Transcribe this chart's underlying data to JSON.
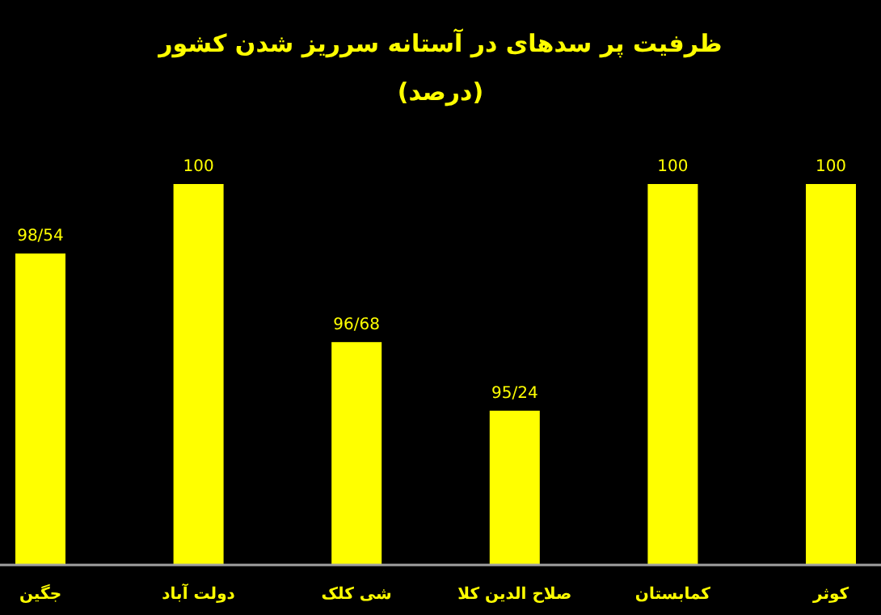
{
  "chart_data": {
    "type": "bar",
    "title": "ظرفیت پر سدهای در آستانه سرریز شدن کشور",
    "subtitle": "(درصد)",
    "categories": [
      "جگین",
      "دولت آباد",
      "شی کلک",
      "صلاح الدین کلا",
      "کمابستان",
      "کوثر"
    ],
    "values": [
      98.54,
      100,
      96.68,
      95.24,
      100,
      100
    ],
    "value_labels": [
      "98/54",
      "100",
      "96/68",
      "95/24",
      "100",
      "100"
    ],
    "color": "#ffff00",
    "ylim": [
      92,
      100
    ],
    "tick_labels": "x"
  }
}
